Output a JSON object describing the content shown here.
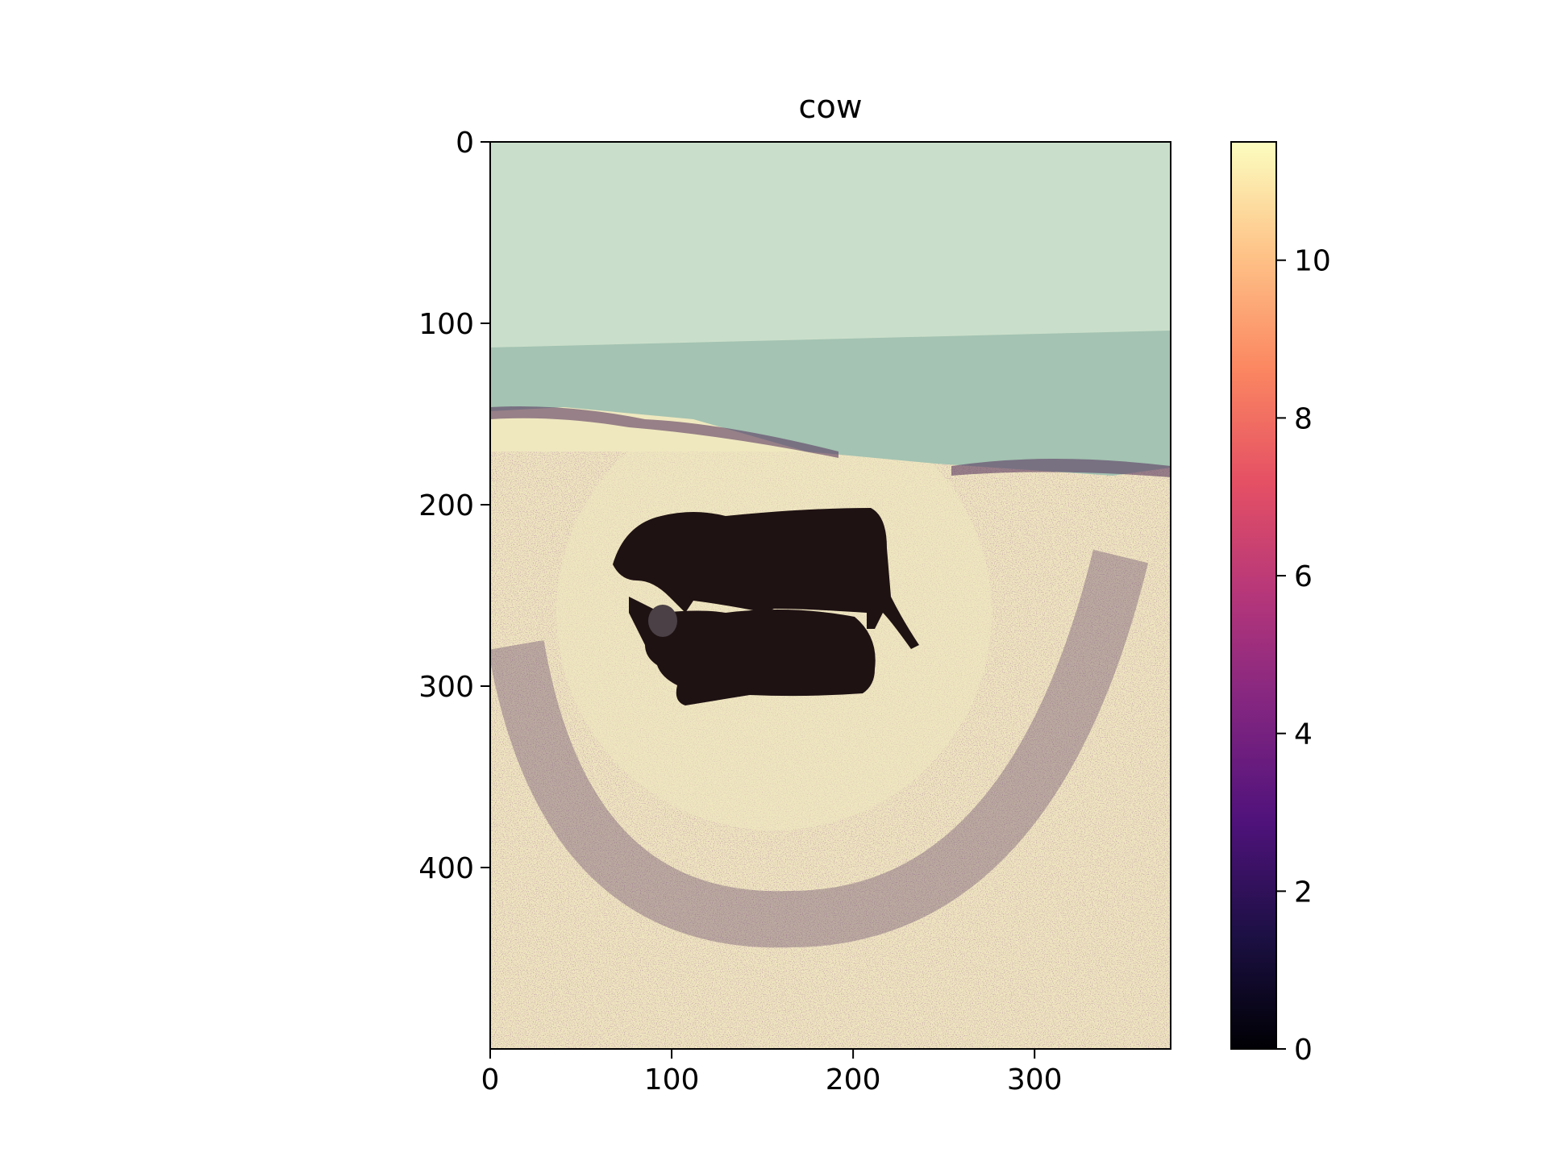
{
  "chart_data": {
    "type": "heatmap",
    "title": "cow",
    "xlabel": "",
    "ylabel": "",
    "xlim": [
      0,
      375
    ],
    "ylim": [
      500,
      0
    ],
    "x_ticks": [
      "0",
      "100",
      "200",
      "300"
    ],
    "y_ticks": [
      "0",
      "100",
      "200",
      "300",
      "400"
    ],
    "colorbar": {
      "colormap": "magma",
      "range": [
        0,
        11.5
      ],
      "ticks": [
        "0",
        "2",
        "4",
        "6",
        "8",
        "10"
      ],
      "stops": [
        "#000004",
        "#1c1044",
        "#4f127b",
        "#812581",
        "#b5367a",
        "#e55064",
        "#fb8761",
        "#fec287",
        "#fcfdbf"
      ]
    },
    "grid": false,
    "image": {
      "subject": "two-cows-on-beach",
      "colors": {
        "sky": "#cadfcb",
        "sea": "#a4c3b2",
        "sand": "#efe8bf",
        "sand_noise": "#d1a7a0",
        "dark_band": "#5b3b63",
        "cow": "#1f1213"
      }
    }
  }
}
